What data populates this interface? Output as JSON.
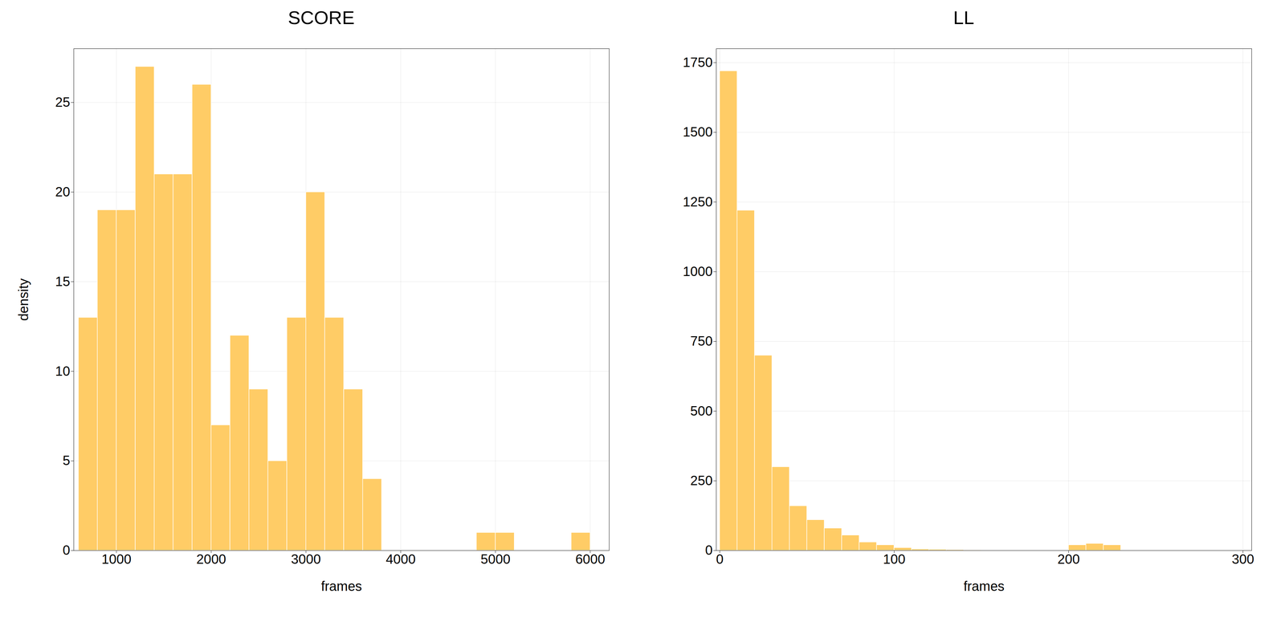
{
  "chart_data": [
    {
      "type": "bar",
      "title": "SCORE",
      "xlabel": "frames",
      "ylabel": "density",
      "x": [
        600,
        800,
        1000,
        1200,
        1400,
        1600,
        1800,
        2000,
        2200,
        2400,
        2600,
        2800,
        3000,
        3200,
        3400,
        3600,
        4800,
        5000,
        5800
      ],
      "values": [
        13,
        19,
        19,
        27,
        21,
        21,
        26,
        7,
        12,
        9,
        5,
        13,
        20,
        13,
        9,
        4,
        1,
        1,
        1
      ],
      "bar_width": 200,
      "color": "#FFCC66",
      "xlim": [
        550,
        6200
      ],
      "ylim": [
        0,
        28
      ],
      "xticks": [
        1000,
        2000,
        3000,
        4000,
        5000,
        6000
      ],
      "yticks": [
        0,
        5,
        10,
        15,
        20,
        25
      ],
      "grid": true
    },
    {
      "type": "bar",
      "title": "LL",
      "xlabel": "frames",
      "x": [
        0,
        10,
        20,
        30,
        40,
        50,
        60,
        70,
        80,
        90,
        100,
        110,
        120,
        130,
        140,
        150,
        200,
        210,
        220
      ],
      "values": [
        1720,
        1220,
        700,
        300,
        160,
        110,
        80,
        55,
        30,
        20,
        10,
        5,
        4,
        3,
        2,
        1,
        20,
        25,
        20
      ],
      "bar_width": 10,
      "color": "#FFCC66",
      "xlim": [
        -2,
        305
      ],
      "ylim": [
        0,
        1800
      ],
      "xticks": [
        0,
        100,
        200,
        300
      ],
      "yticks": [
        0,
        250,
        500,
        750,
        1000,
        1250,
        1500,
        1750
      ],
      "grid": true
    }
  ]
}
